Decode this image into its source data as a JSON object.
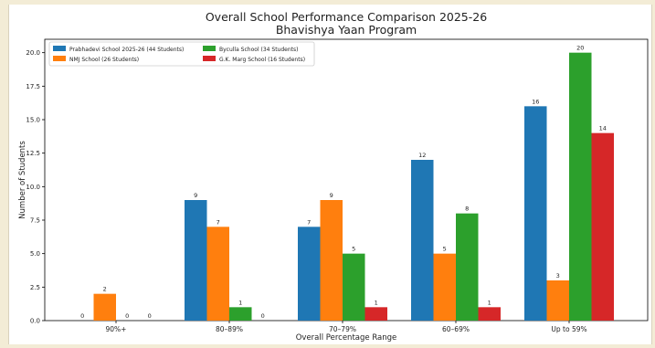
{
  "chart_data": {
    "type": "bar",
    "title": "Overall School Performance Comparison 2025-26",
    "subtitle": "Bhavishya Yaan Program",
    "xlabel": "Overall Percentage Range",
    "ylabel": "Number of Students",
    "categories": [
      "90%+",
      "80–89%",
      "70–79%",
      "60–69%",
      "Up to 59%"
    ],
    "ylim": [
      0,
      21
    ],
    "yticks": [
      "0.0",
      "2.5",
      "5.0",
      "7.5",
      "10.0",
      "12.5",
      "15.0",
      "17.5",
      "20.0"
    ],
    "grid": false,
    "legend_position": "top-left",
    "series": [
      {
        "name": "Prabhadevi School 2025-26 (44 Students)",
        "color": "#1f77b4",
        "values": [
          0,
          9,
          7,
          12,
          16
        ]
      },
      {
        "name": "NMJ School (26 Students)",
        "color": "#ff7f0e",
        "values": [
          2,
          7,
          9,
          5,
          3
        ]
      },
      {
        "name": "Byculla School (34 Students)",
        "color": "#2ca02c",
        "values": [
          0,
          1,
          5,
          8,
          20
        ]
      },
      {
        "name": "G.K. Marg School (16 Students)",
        "color": "#d62728",
        "values": [
          0,
          0,
          1,
          1,
          14
        ]
      }
    ]
  }
}
